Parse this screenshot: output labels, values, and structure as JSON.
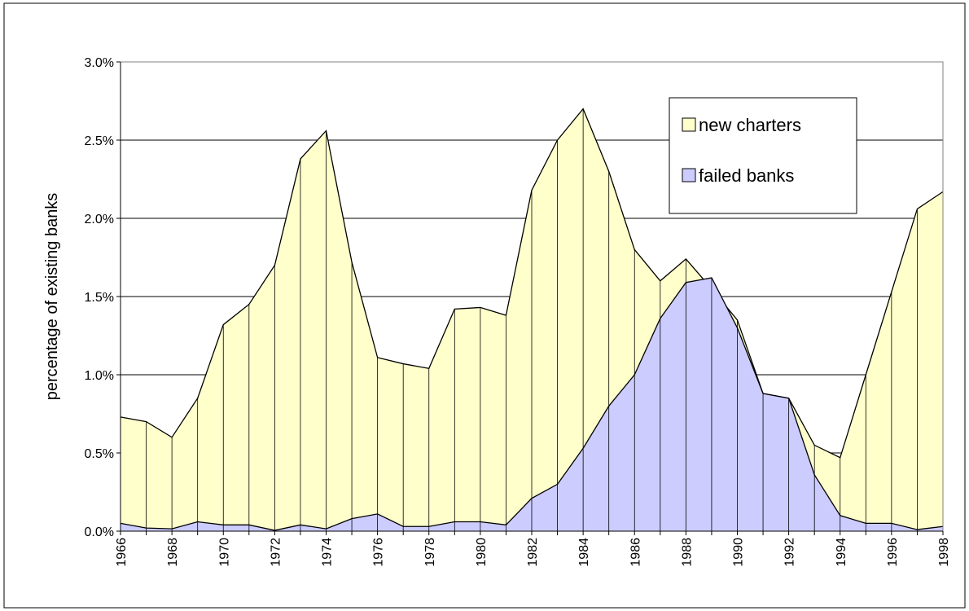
{
  "chart_data": {
    "type": "area",
    "ylabel": "percentage of existing banks",
    "categories": [
      "1966",
      null,
      "1968",
      null,
      "1970",
      null,
      "1972",
      null,
      "1974",
      null,
      "1976",
      null,
      "1978",
      null,
      "1980",
      null,
      "1982",
      null,
      "1984",
      null,
      "1986",
      null,
      "1988",
      null,
      "1990",
      null,
      "1992",
      null,
      "1994",
      null,
      "1996",
      null,
      "1998"
    ],
    "series": [
      {
        "name": "new charters",
        "color": "#ffffcc",
        "values": [
          0.73,
          0.7,
          0.6,
          0.85,
          1.32,
          1.45,
          1.7,
          2.38,
          2.56,
          1.72,
          1.11,
          1.07,
          1.04,
          1.42,
          1.43,
          1.38,
          2.18,
          2.5,
          2.7,
          2.3,
          1.8,
          1.6,
          1.74,
          1.55,
          1.35,
          0.88,
          0.85,
          0.55,
          0.47,
          1.0,
          1.53,
          2.06,
          2.17
        ]
      },
      {
        "name": "failed banks",
        "color": "#ccccff",
        "values": [
          0.05,
          0.02,
          0.015,
          0.06,
          0.04,
          0.04,
          0.005,
          0.04,
          0.015,
          0.08,
          0.11,
          0.03,
          0.03,
          0.06,
          0.06,
          0.04,
          0.21,
          0.3,
          0.53,
          0.8,
          1.0,
          1.36,
          1.59,
          1.62,
          1.3,
          0.88,
          0.85,
          0.36,
          0.1,
          0.05,
          0.05,
          0.01,
          0.03
        ]
      }
    ],
    "ylim": [
      0,
      3
    ],
    "yticks": [
      {
        "value": 0,
        "label": "0.0%"
      },
      {
        "value": 0.5,
        "label": "0.5%"
      },
      {
        "value": 1,
        "label": "1.0%"
      },
      {
        "value": 1.5,
        "label": "1.5%"
      },
      {
        "value": 2,
        "label": "2.0%"
      },
      {
        "value": 2.5,
        "label": "2.5%"
      },
      {
        "value": 3,
        "label": "3.0%"
      }
    ],
    "grid": true,
    "legend": "upper right"
  }
}
